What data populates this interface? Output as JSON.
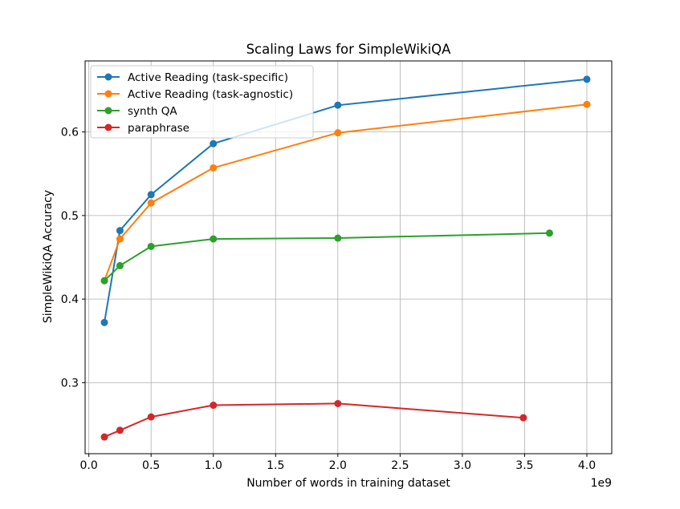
{
  "chart_data": {
    "type": "line",
    "title": "Scaling Laws for SimpleWikiQA",
    "xlabel": "Number of words in training dataset",
    "ylabel": "SimpleWikiQA Accuracy",
    "x_offset_label": "1e9",
    "xlim": [
      -0.03,
      4.2
    ],
    "ylim": [
      0.215,
      0.685
    ],
    "x_ticks": [
      0.0,
      0.5,
      1.0,
      1.5,
      2.0,
      2.5,
      3.0,
      3.5,
      4.0
    ],
    "x_tick_labels": [
      "0.0",
      "0.5",
      "1.0",
      "1.5",
      "2.0",
      "2.5",
      "3.0",
      "3.5",
      "4.0"
    ],
    "y_ticks": [
      0.3,
      0.4,
      0.5,
      0.6
    ],
    "y_tick_labels": [
      "0.3",
      "0.4",
      "0.5",
      "0.6"
    ],
    "grid": true,
    "legend_position": "top-left",
    "series": [
      {
        "name": "Active Reading (task-specific)",
        "color": "#1f77b4",
        "x": [
          0.125,
          0.25,
          0.5,
          1.0,
          2.0,
          4.0
        ],
        "y": [
          0.372,
          0.482,
          0.525,
          0.586,
          0.632,
          0.663
        ]
      },
      {
        "name": "Active Reading (task-agnostic)",
        "color": "#ff7f0e",
        "x": [
          0.125,
          0.25,
          0.5,
          1.0,
          2.0,
          4.0
        ],
        "y": [
          0.422,
          0.472,
          0.515,
          0.557,
          0.599,
          0.633
        ]
      },
      {
        "name": "synth QA",
        "color": "#2ca02c",
        "x": [
          0.125,
          0.25,
          0.5,
          1.0,
          2.0,
          3.7
        ],
        "y": [
          0.422,
          0.44,
          0.463,
          0.472,
          0.473,
          0.479
        ]
      },
      {
        "name": "paraphrase",
        "color": "#d62728",
        "x": [
          0.125,
          0.25,
          0.5,
          1.0,
          2.0,
          3.49
        ],
        "y": [
          0.235,
          0.243,
          0.259,
          0.273,
          0.275,
          0.258
        ]
      }
    ]
  }
}
